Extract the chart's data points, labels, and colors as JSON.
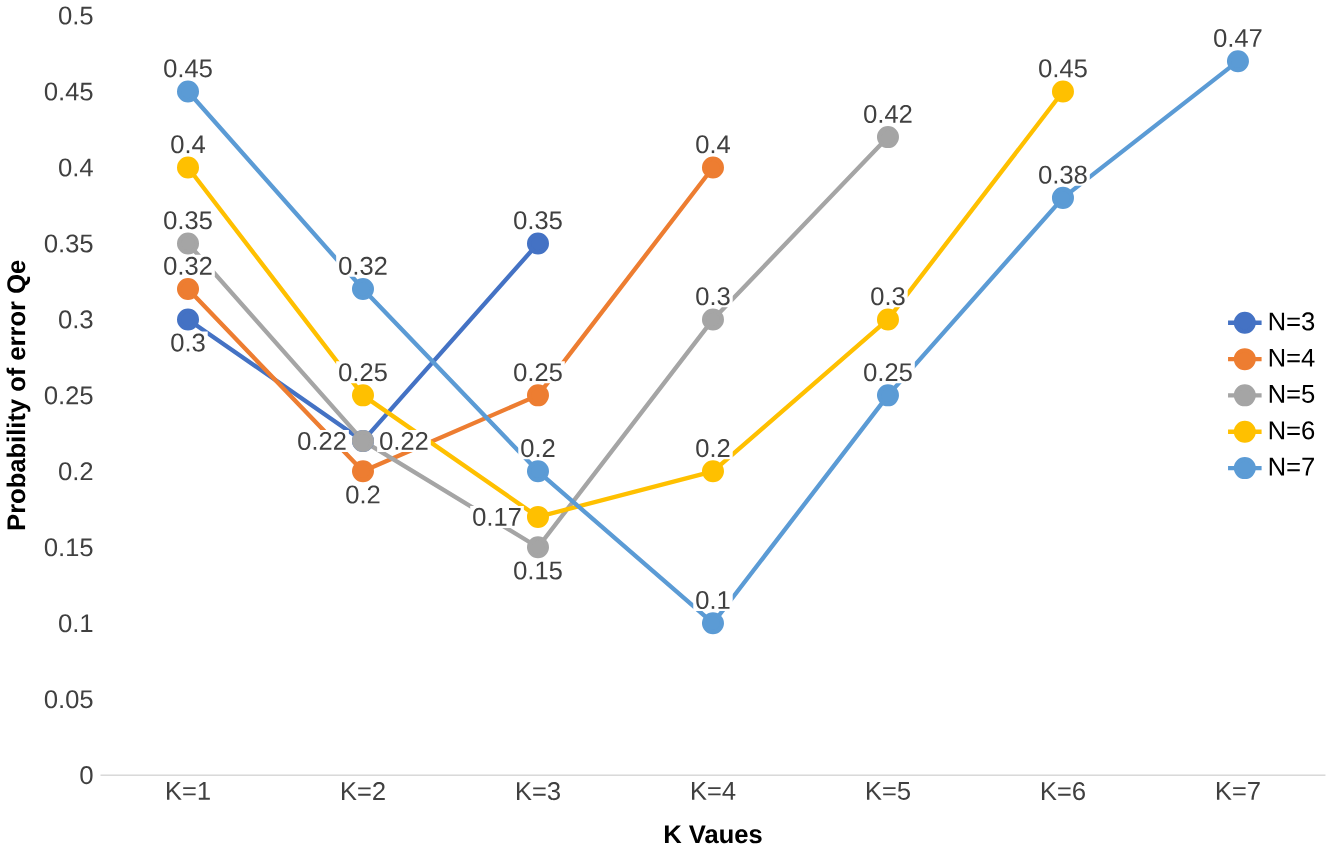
{
  "chart_data": {
    "type": "line",
    "xlabel": "K Vaues",
    "ylabel": "Probability of error Qe",
    "categories": [
      "K=1",
      "K=2",
      "K=3",
      "K=4",
      "K=5",
      "K=6",
      "K=7"
    ],
    "series": [
      {
        "name": "N=3",
        "color": "#4472c4",
        "values": [
          0.3,
          0.22,
          0.35,
          null,
          null,
          null,
          null
        ]
      },
      {
        "name": "N=4",
        "color": "#ed7d31",
        "values": [
          0.32,
          0.2,
          0.25,
          0.4,
          null,
          null,
          null
        ]
      },
      {
        "name": "N=5",
        "color": "#a5a5a5",
        "values": [
          0.35,
          0.22,
          0.15,
          0.3,
          0.42,
          null,
          null
        ]
      },
      {
        "name": "N=6",
        "color": "#ffc000",
        "values": [
          0.4,
          0.25,
          0.17,
          0.2,
          0.3,
          0.45,
          null
        ]
      },
      {
        "name": "N=7",
        "color": "#5b9bd5",
        "values": [
          0.45,
          0.32,
          0.2,
          0.1,
          0.25,
          0.38,
          0.47
        ]
      }
    ],
    "ylim": [
      0,
      0.5
    ],
    "yticks": [
      0,
      0.05,
      0.1,
      0.15,
      0.2,
      0.25,
      0.3,
      0.35,
      0.4,
      0.45,
      0.5
    ],
    "grid": false,
    "legend": "right",
    "marker": "circle",
    "line_style": "solid",
    "data_labels": true
  }
}
